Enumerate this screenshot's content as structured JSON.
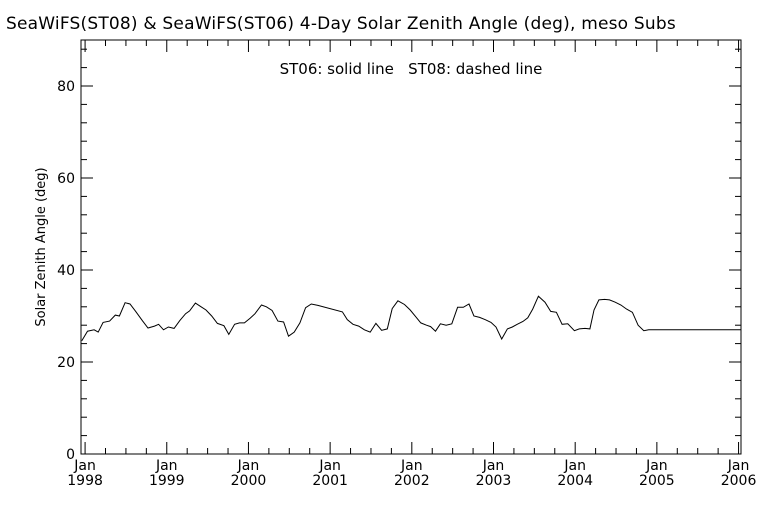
{
  "chart_data": {
    "type": "line",
    "title": "SeaWiFS(ST08) & SeaWiFS(ST06) 4-Day Solar Zenith Angle (deg), meso Subs",
    "annotation": "ST06: solid line   ST08: dashed line",
    "ylabel": "Solar Zenith Angle (deg)",
    "xlabel": "",
    "ylim": [
      0,
      90
    ],
    "yticks": [
      0,
      20,
      40,
      60,
      80
    ],
    "xlim": [
      1997.95,
      2006.03
    ],
    "xticks": [
      {
        "month": "Jan",
        "year": "1998",
        "x": 1998
      },
      {
        "month": "Jan",
        "year": "1999",
        "x": 1999
      },
      {
        "month": "Jan",
        "year": "2000",
        "x": 2000
      },
      {
        "month": "Jan",
        "year": "2001",
        "x": 2001
      },
      {
        "month": "Jan",
        "year": "2002",
        "x": 2002
      },
      {
        "month": "Jan",
        "year": "2003",
        "x": 2003
      },
      {
        "month": "Jan",
        "year": "2004",
        "x": 2004
      },
      {
        "month": "Jan",
        "year": "2005",
        "x": 2005
      },
      {
        "month": "Jan",
        "year": "2006",
        "x": 2006
      }
    ],
    "grid": false,
    "series": [
      {
        "name": "ST06",
        "style": "solid",
        "color": "#000000",
        "x": [
          1997.96,
          1998.03,
          1998.11,
          1998.16,
          1998.22,
          1998.3,
          1998.37,
          1998.42,
          1998.49,
          1998.55,
          1998.62,
          1998.7,
          1998.77,
          1998.85,
          1998.9,
          1998.96,
          1999.02,
          1999.09,
          1999.16,
          1999.23,
          1999.28,
          1999.35,
          1999.42,
          1999.48,
          1999.55,
          1999.62,
          1999.7,
          1999.76,
          1999.83,
          1999.89,
          1999.95,
          2000.02,
          2000.08,
          2000.16,
          2000.22,
          2000.29,
          2000.36,
          2000.43,
          2000.49,
          2000.56,
          2000.63,
          2000.7,
          2000.77,
          2000.85,
          2001.15,
          2001.21,
          2001.28,
          2001.35,
          2001.42,
          2001.49,
          2001.56,
          2001.63,
          2001.7,
          2001.76,
          2001.83,
          2001.91,
          2001.98,
          2002.05,
          2002.11,
          2002.18,
          2002.23,
          2002.29,
          2002.35,
          2002.42,
          2002.49,
          2002.56,
          2002.63,
          2002.7,
          2002.76,
          2002.83,
          2002.9,
          2002.97,
          2003.03,
          2003.1,
          2003.17,
          2003.23,
          2003.29,
          2003.36,
          2003.42,
          2003.48,
          2003.55,
          2003.63,
          2003.7,
          2003.77,
          2003.84,
          2003.91,
          2003.99,
          2004.05,
          2004.12,
          2004.18,
          2004.23,
          2004.29,
          2004.36,
          2004.42,
          2004.49,
          2004.56,
          2004.63,
          2004.7,
          2004.77,
          2004.84,
          2004.9,
          2004.96,
          2005.02,
          2005.09,
          2005.16,
          2005.23,
          2005.3,
          2005.36,
          2005.43,
          2005.49,
          2005.56,
          2005.63,
          2005.7,
          2005.77,
          2005.84,
          2005.91,
          2005.97,
          2006.03
        ],
        "y": [
          24.6,
          26.7,
          27.0,
          26.5,
          28.6,
          28.9,
          30.2,
          30.0,
          32.9,
          32.6,
          31.0,
          29.0,
          27.4,
          27.8,
          28.2,
          27.0,
          27.6,
          27.3,
          29.0,
          30.5,
          31.1,
          32.8,
          32.0,
          31.3,
          30.0,
          28.4,
          27.9,
          26.0,
          28.2,
          28.5,
          28.5,
          29.5,
          30.5,
          32.4,
          32.0,
          31.2,
          28.9,
          28.7,
          25.6,
          26.5,
          28.5,
          31.8,
          32.6,
          32.3,
          30.9,
          29.2,
          28.2,
          27.8,
          27.0,
          26.5,
          28.4,
          26.9,
          27.2,
          31.6,
          33.3,
          32.5,
          31.3,
          29.8,
          28.5,
          28.0,
          27.7,
          26.7,
          28.3,
          28.0,
          28.3,
          31.9,
          31.9,
          32.6,
          30.0,
          29.7,
          29.2,
          28.6,
          27.6,
          25.0,
          27.2,
          27.6,
          28.2,
          28.8,
          29.6,
          31.5,
          34.3,
          33.0,
          31.0,
          30.8,
          28.2,
          28.3,
          26.8,
          27.2,
          27.3,
          27.2,
          31.3,
          33.5,
          33.6,
          33.5,
          33.0,
          32.4,
          31.5,
          30.8,
          28.0,
          26.8,
          27.0,
          27.0,
          27.0,
          27.0,
          27.0,
          27.0,
          27.0,
          27.0,
          27.0,
          27.0,
          27.0,
          27.0,
          27.0,
          27.0,
          27.0,
          27.0,
          27.0,
          27.0
        ]
      }
    ]
  }
}
